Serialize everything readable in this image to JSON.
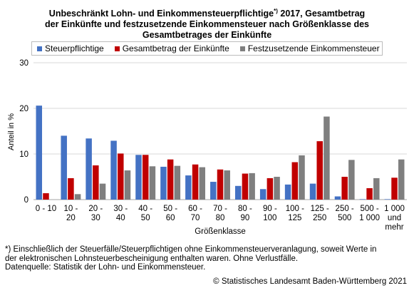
{
  "title": {
    "line1": "Unbeschränkt Lohn- und Einkommensteuerpflichtige",
    "sup": "*)",
    "line1_rest": " 2017, Gesamtbetrag",
    "line2": "der Einkünfte und festzusetzende Einkommensteuer nach Größenklasse des",
    "line3": "Gesamtbetrages der Einkünfte"
  },
  "footnote": {
    "line1": "*) Einschließlich der Steuerfälle/Steuerpflichtigen ohne Einkommensteuerveranlagung,  soweit Werte in",
    "line2": "der elektronischen Lohnsteuerbescheinigung enthalten waren. Ohne Verlustfälle.",
    "line3": "Datenquelle: Statistik der Lohn- und Einkommensteuer."
  },
  "source": "© Statistisches Landesamt Baden-Württemberg 2021",
  "colors": {
    "blue": "#4472c4",
    "red": "#c00000",
    "grey": "#7f7f7f",
    "grid": "#d9d9d9"
  },
  "chart_data": {
    "type": "bar",
    "xlabel": "Größenklasse",
    "ylabel": "Anteil in %",
    "ylim": [
      0,
      30
    ],
    "yticks": [
      "0",
      "10",
      "20",
      "30"
    ],
    "legend_position": "top",
    "categories": [
      [
        "0 - 10"
      ],
      [
        "10 -",
        "20"
      ],
      [
        "20 -",
        "30"
      ],
      [
        "30 -",
        "40"
      ],
      [
        "40 -",
        "50"
      ],
      [
        "50 -",
        "60"
      ],
      [
        "60 -",
        "70"
      ],
      [
        "70 -",
        "80"
      ],
      [
        "80 -",
        "90"
      ],
      [
        "90 -",
        "100"
      ],
      [
        "100 -",
        "125"
      ],
      [
        "125 -",
        "250"
      ],
      [
        "250 -",
        "500"
      ],
      [
        "500 -",
        "1 000"
      ],
      [
        "1 000",
        "und",
        "mehr"
      ]
    ],
    "series": [
      {
        "name": "Steuerpflichtige",
        "color": "#4472c4",
        "values": [
          20.6,
          14.0,
          13.4,
          12.9,
          9.8,
          7.2,
          5.3,
          3.9,
          3.0,
          2.3,
          3.3,
          3.5,
          0.7,
          0.1,
          0.1
        ]
      },
      {
        "name": "Gesamtbetrag der Einkünfte",
        "color": "#c00000",
        "values": [
          1.4,
          4.7,
          7.5,
          10.1,
          9.8,
          8.8,
          7.7,
          6.6,
          5.7,
          4.7,
          8.2,
          12.8,
          5.0,
          2.5,
          4.8
        ]
      },
      {
        "name": "Festzusetzende Einkommensteuer",
        "color": "#7f7f7f",
        "values": [
          0.0,
          1.2,
          3.5,
          6.4,
          7.3,
          7.4,
          7.1,
          6.4,
          5.8,
          5.0,
          9.7,
          18.2,
          8.7,
          4.7,
          8.8
        ]
      }
    ]
  }
}
